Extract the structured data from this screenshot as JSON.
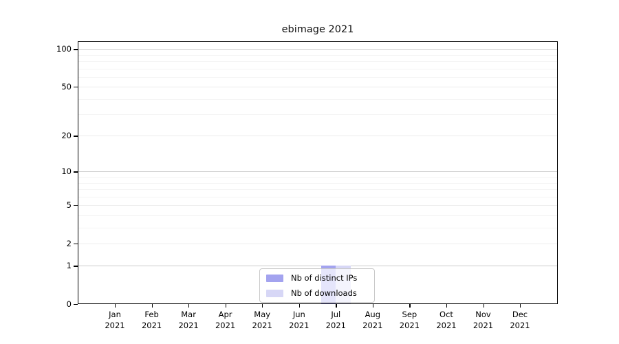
{
  "title": "ebimage 2021",
  "colors": {
    "background": "#ffffff",
    "spine": "#000000",
    "bar_distinct_ips": "#a3a3ef",
    "bar_downloads": "#d7d7f6",
    "gridline_decade": "#cbcbcb",
    "gridline_major": "#ebebeb",
    "gridline_minor": "#f4f4f4",
    "legend_border": "#c9c9c9",
    "text": "#000000"
  },
  "legend": {
    "items": [
      {
        "label": "Nb of distinct IPs",
        "color": "#a3a3ef"
      },
      {
        "label": "Nb of downloads",
        "color": "#d7d7f6"
      }
    ]
  },
  "chart_data": {
    "type": "bar",
    "title": "ebimage 2021",
    "categories": [
      "Jan 2021",
      "Feb 2021",
      "Mar 2021",
      "Apr 2021",
      "May 2021",
      "Jun 2021",
      "Jul 2021",
      "Aug 2021",
      "Sep 2021",
      "Oct 2021",
      "Nov 2021",
      "Dec 2021"
    ],
    "series": [
      {
        "name": "Nb of distinct IPs",
        "color": "#a3a3ef",
        "values": [
          0,
          0,
          0,
          0,
          0,
          0,
          1,
          0,
          0,
          0,
          0,
          0
        ]
      },
      {
        "name": "Nb of downloads",
        "color": "#d7d7f6",
        "values": [
          0,
          0,
          0,
          0,
          0,
          0,
          1,
          0,
          0,
          0,
          0,
          0
        ]
      }
    ],
    "xlabel": "",
    "ylabel": "",
    "yscale": "log1p",
    "yticks": [
      0,
      1,
      2,
      5,
      10,
      20,
      50,
      100
    ],
    "ylim": [
      0,
      115.2
    ],
    "gridlines": {
      "decade": [
        1,
        10,
        100
      ],
      "major": [
        2,
        5,
        20,
        50
      ],
      "minor": [
        3,
        4,
        6,
        7,
        8,
        9,
        30,
        40,
        60,
        70,
        80,
        90
      ]
    },
    "grid": "horizontal",
    "legend_position": "lower-center-inside"
  }
}
